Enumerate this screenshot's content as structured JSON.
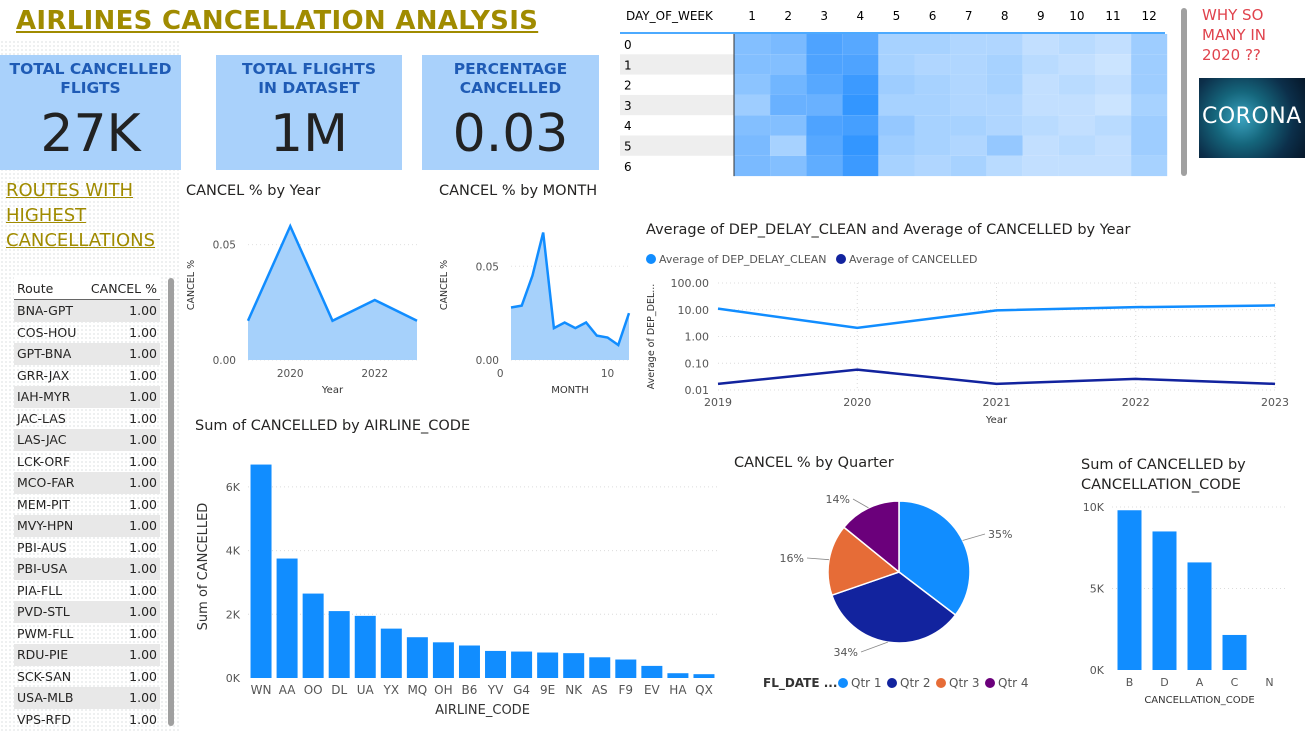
{
  "title": "AIRLINES CANCELLATION ANALYSIS",
  "kpis": [
    {
      "label": "TOTAL CANCELLED FLIGTS",
      "value": "27K"
    },
    {
      "label": "TOTAL FLIGHTS IN DATASET",
      "value": "1M"
    },
    {
      "label": "PERCENTAGE CANCELLED",
      "value": "0.03"
    }
  ],
  "side_note": {
    "text": "WHY SO MANY IN 2020 ??",
    "image_text": "CORONA"
  },
  "routes": {
    "title": "ROUTES WITH HIGHEST CANCELLATIONS",
    "columns": [
      "Route",
      "CANCEL %"
    ],
    "rows": [
      [
        "BNA-GPT",
        "1.00"
      ],
      [
        "COS-HOU",
        "1.00"
      ],
      [
        "GPT-BNA",
        "1.00"
      ],
      [
        "GRR-JAX",
        "1.00"
      ],
      [
        "IAH-MYR",
        "1.00"
      ],
      [
        "JAC-LAS",
        "1.00"
      ],
      [
        "LAS-JAC",
        "1.00"
      ],
      [
        "LCK-ORF",
        "1.00"
      ],
      [
        "MCO-FAR",
        "1.00"
      ],
      [
        "MEM-PIT",
        "1.00"
      ],
      [
        "MVY-HPN",
        "1.00"
      ],
      [
        "PBI-AUS",
        "1.00"
      ],
      [
        "PBI-USA",
        "1.00"
      ],
      [
        "PIA-FLL",
        "1.00"
      ],
      [
        "PVD-STL",
        "1.00"
      ],
      [
        "PWM-FLL",
        "1.00"
      ],
      [
        "RDU-PIE",
        "1.00"
      ],
      [
        "SCK-SAN",
        "1.00"
      ],
      [
        "USA-MLB",
        "1.00"
      ],
      [
        "VPS-RFD",
        "1.00"
      ]
    ]
  },
  "chart_data": [
    {
      "id": "heatmap",
      "type": "heatmap",
      "title": "",
      "row_header": "DAY_OF_WEEK",
      "columns": [
        "1",
        "2",
        "3",
        "4",
        "5",
        "6",
        "7",
        "8",
        "9",
        "10",
        "11",
        "12"
      ],
      "rows": [
        "0",
        "1",
        "2",
        "3",
        "4",
        "5",
        "6"
      ],
      "values": [
        [
          0.55,
          0.6,
          0.85,
          0.8,
          0.35,
          0.35,
          0.3,
          0.3,
          0.2,
          0.25,
          0.2,
          0.4
        ],
        [
          0.55,
          0.55,
          0.85,
          0.85,
          0.35,
          0.3,
          0.3,
          0.35,
          0.25,
          0.2,
          0.15,
          0.4
        ],
        [
          0.5,
          0.65,
          0.8,
          0.95,
          0.4,
          0.35,
          0.3,
          0.35,
          0.2,
          0.25,
          0.2,
          0.4
        ],
        [
          0.4,
          0.7,
          0.7,
          1.0,
          0.35,
          0.35,
          0.3,
          0.3,
          0.2,
          0.2,
          0.15,
          0.35
        ],
        [
          0.55,
          0.55,
          0.85,
          0.9,
          0.45,
          0.35,
          0.35,
          0.3,
          0.25,
          0.2,
          0.25,
          0.4
        ],
        [
          0.6,
          0.35,
          0.8,
          1.0,
          0.4,
          0.35,
          0.3,
          0.45,
          0.2,
          0.25,
          0.2,
          0.4
        ],
        [
          0.6,
          0.55,
          0.75,
          0.95,
          0.35,
          0.3,
          0.35,
          0.25,
          0.2,
          0.2,
          0.2,
          0.35
        ]
      ]
    },
    {
      "id": "cancel_by_year",
      "type": "area",
      "title": "CANCEL % by Year",
      "xlabel": "Year",
      "ylabel": "CANCEL %",
      "x": [
        2019,
        2020,
        2021,
        2022,
        2023
      ],
      "values": [
        0.017,
        0.058,
        0.017,
        0.026,
        0.017
      ],
      "xticks": [
        "2020",
        "2022"
      ],
      "yticks": [
        "0.00",
        "0.05"
      ],
      "ylim": [
        0,
        0.065
      ]
    },
    {
      "id": "cancel_by_month",
      "type": "area",
      "title": "CANCEL % by MONTH",
      "xlabel": "MONTH",
      "ylabel": "CANCEL %",
      "x": [
        1,
        2,
        3,
        4,
        5,
        6,
        7,
        8,
        9,
        10,
        11,
        12
      ],
      "values": [
        0.028,
        0.029,
        0.045,
        0.068,
        0.017,
        0.02,
        0.017,
        0.02,
        0.013,
        0.012,
        0.008,
        0.025
      ],
      "xticks": [
        "0",
        "10"
      ],
      "yticks": [
        "0.00",
        "0.05"
      ],
      "ylim": [
        0,
        0.08
      ]
    },
    {
      "id": "delay_vs_cancel",
      "type": "line",
      "title": "Average of DEP_DELAY_CLEAN and Average of CANCELLED by Year",
      "xlabel": "Year",
      "ylabel": "Average of DEP_DEL...",
      "y_scale": "log",
      "x": [
        "2019",
        "2020",
        "2021",
        "2022",
        "2023"
      ],
      "series": [
        {
          "name": "Average of DEP_DELAY_CLEAN",
          "color": "#118dff",
          "values": [
            11,
            2.1,
            9.5,
            12.5,
            14.5
          ]
        },
        {
          "name": "Average of CANCELLED",
          "color": "#12239e",
          "values": [
            0.017,
            0.058,
            0.017,
            0.026,
            0.017
          ]
        }
      ],
      "yticks": [
        "0.01",
        "0.10",
        "1.00",
        "10.00",
        "100.00"
      ],
      "ylim": [
        0.01,
        100
      ]
    },
    {
      "id": "cancelled_by_airline",
      "type": "bar",
      "title": "Sum of CANCELLED by AIRLINE_CODE",
      "xlabel": "AIRLINE_CODE",
      "ylabel": "Sum of CANCELLED",
      "categories": [
        "WN",
        "AA",
        "OO",
        "DL",
        "UA",
        "YX",
        "MQ",
        "OH",
        "B6",
        "YV",
        "G4",
        "9E",
        "NK",
        "AS",
        "F9",
        "EV",
        "HA",
        "QX"
      ],
      "values": [
        6700,
        3750,
        2650,
        2100,
        1950,
        1550,
        1280,
        1120,
        1020,
        850,
        830,
        800,
        780,
        650,
        580,
        380,
        150,
        120
      ],
      "yticks": [
        "0K",
        "2K",
        "4K",
        "6K"
      ],
      "ylim": [
        0,
        7000
      ],
      "color": "#118dff"
    },
    {
      "id": "cancel_by_quarter",
      "type": "pie",
      "title": "CANCEL % by Quarter",
      "legend_title": "FL_DATE ...",
      "labels": [
        "Qtr 1",
        "Qtr 2",
        "Qtr 3",
        "Qtr 4"
      ],
      "values": [
        35,
        34,
        16,
        14
      ],
      "value_labels": [
        "35%",
        "34%",
        "16%",
        "14%"
      ],
      "colors": [
        "#118dff",
        "#12239e",
        "#e66c37",
        "#6b007b"
      ]
    },
    {
      "id": "cancelled_by_code",
      "type": "bar",
      "title": "Sum of CANCELLED by CANCELLATION_CODE",
      "xlabel": "CANCELLATION_CODE",
      "ylabel": "",
      "categories": [
        "B",
        "D",
        "A",
        "C",
        "N"
      ],
      "values": [
        9800,
        8500,
        6600,
        2150,
        0
      ],
      "yticks": [
        "0K",
        "5K",
        "10K"
      ],
      "ylim": [
        0,
        10000
      ],
      "color": "#118dff"
    }
  ]
}
